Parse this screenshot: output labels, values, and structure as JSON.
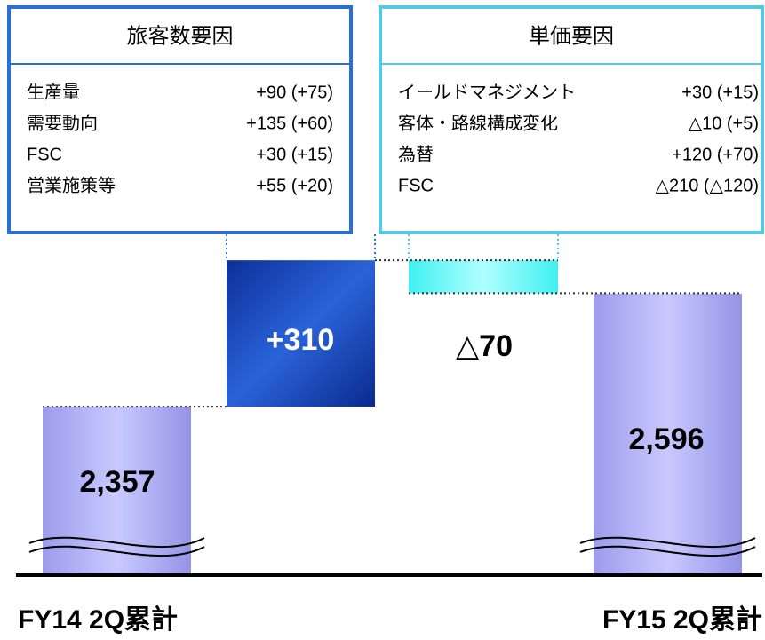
{
  "chart_data": {
    "type": "waterfall",
    "categories": [
      "FY14 2Q累計",
      null,
      null,
      "FY15 2Q累計"
    ],
    "values": [
      2357,
      310,
      -70,
      2596
    ],
    "value_labels": [
      "2,357",
      "+310",
      "△70",
      "2,596"
    ],
    "colors": [
      "#a9a9f2",
      "#1b4fc4",
      "#5ff5f5",
      "#a9a9f2"
    ],
    "ylim": [
      2000,
      2750
    ],
    "factor_boxes": [
      {
        "title": "旅客数要因",
        "color": "#2a6fd6",
        "items": [
          [
            "生産量",
            "+90 (+75)"
          ],
          [
            "需要動向",
            "+135 (+60)"
          ],
          [
            "FSC",
            "+30 (+15)"
          ],
          [
            "営業施策等",
            "+55 (+20)"
          ]
        ]
      },
      {
        "title": "単価要因",
        "color": "#55c8e6",
        "items": [
          [
            "イールドマネジメント",
            "+30 (+15)"
          ],
          [
            "客体・路線構成変化",
            "△10 (+5)"
          ],
          [
            "為替",
            "+120 (+70)"
          ],
          [
            "FSC",
            "△210 (△120)"
          ]
        ]
      }
    ]
  }
}
